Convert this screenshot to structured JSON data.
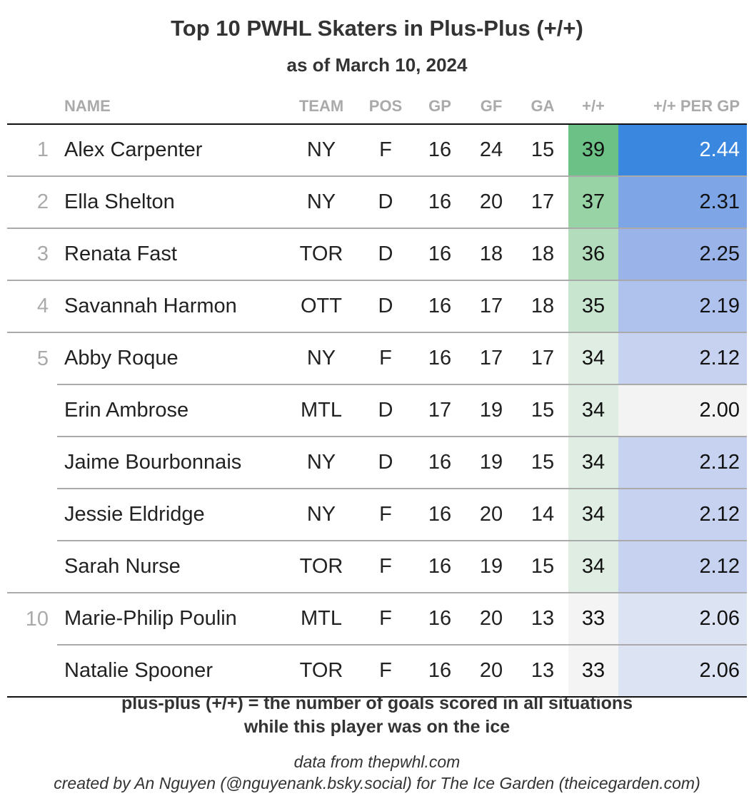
{
  "title": "Top 10 PWHL Skaters in Plus-Plus (+/+)",
  "subtitle": "as of March 10, 2024",
  "footnote_line1": "plus-plus (+/+) = the number of goals scored in all situations",
  "footnote_line2": "while this player was on the ice",
  "source_line1": "data from thepwhl.com",
  "source_line2": "created by An Nguyen (@nguyenank.bsky.social) for The Ice Garden (theicegarden.com)",
  "chart_data": {
    "type": "table",
    "columns": [
      "",
      "NAME",
      "TEAM",
      "POS",
      "GP",
      "GF",
      "GA",
      "+/+",
      "+/+ PER GP"
    ],
    "rows": [
      {
        "rank": "1",
        "name": "Alex Carpenter",
        "team": "NY",
        "pos": "F",
        "gp": 16,
        "gf": 24,
        "ga": 15,
        "pp": 39,
        "ppg": "2.44",
        "pp_color": "#6cc187",
        "ppg_color": "#3a87e0",
        "ppg_text": "#ffffff"
      },
      {
        "rank": "2",
        "name": "Ella Shelton",
        "team": "NY",
        "pos": "D",
        "gp": 16,
        "gf": 20,
        "ga": 17,
        "pp": 37,
        "ppg": "2.31",
        "pp_color": "#98d3a6",
        "ppg_color": "#7ea5e6",
        "ppg_text": "#111111"
      },
      {
        "rank": "3",
        "name": "Renata Fast",
        "team": "TOR",
        "pos": "D",
        "gp": 16,
        "gf": 18,
        "ga": 18,
        "pp": 36,
        "ppg": "2.25",
        "pp_color": "#b3dcbd",
        "ppg_color": "#9ab4ea",
        "ppg_text": "#111111"
      },
      {
        "rank": "4",
        "name": "Savannah Harmon",
        "team": "OTT",
        "pos": "D",
        "gp": 16,
        "gf": 17,
        "ga": 18,
        "pp": 35,
        "ppg": "2.19",
        "pp_color": "#c8e5cf",
        "ppg_color": "#afc1ed",
        "ppg_text": "#111111"
      },
      {
        "rank": "5",
        "name": "Abby Roque",
        "team": "NY",
        "pos": "F",
        "gp": 16,
        "gf": 17,
        "ga": 17,
        "pp": 34,
        "ppg": "2.12",
        "pp_color": "#dfede2",
        "ppg_color": "#c6d2ef",
        "ppg_text": "#111111"
      },
      {
        "rank": "",
        "name": "Erin Ambrose",
        "team": "MTL",
        "pos": "D",
        "gp": 17,
        "gf": 19,
        "ga": 15,
        "pp": 34,
        "ppg": "2.00",
        "pp_color": "#dfede2",
        "ppg_color": "#f3f3f3",
        "ppg_text": "#111111"
      },
      {
        "rank": "",
        "name": "Jaime Bourbonnais",
        "team": "NY",
        "pos": "D",
        "gp": 16,
        "gf": 19,
        "ga": 15,
        "pp": 34,
        "ppg": "2.12",
        "pp_color": "#dfede2",
        "ppg_color": "#c6d2ef",
        "ppg_text": "#111111"
      },
      {
        "rank": "",
        "name": "Jessie Eldridge",
        "team": "NY",
        "pos": "F",
        "gp": 16,
        "gf": 20,
        "ga": 14,
        "pp": 34,
        "ppg": "2.12",
        "pp_color": "#dfede2",
        "ppg_color": "#c6d2ef",
        "ppg_text": "#111111"
      },
      {
        "rank": "",
        "name": "Sarah Nurse",
        "team": "TOR",
        "pos": "F",
        "gp": 16,
        "gf": 19,
        "ga": 15,
        "pp": 34,
        "ppg": "2.12",
        "pp_color": "#dfede2",
        "ppg_color": "#c6d2ef",
        "ppg_text": "#111111"
      },
      {
        "rank": "10",
        "name": "Marie-Philip Poulin",
        "team": "MTL",
        "pos": "F",
        "gp": 16,
        "gf": 20,
        "ga": 13,
        "pp": 33,
        "ppg": "2.06",
        "pp_color": "#f3f4f3",
        "ppg_color": "#dce3f2",
        "ppg_text": "#111111"
      },
      {
        "rank": "",
        "name": "Natalie Spooner",
        "team": "TOR",
        "pos": "F",
        "gp": 16,
        "gf": 20,
        "ga": 13,
        "pp": 33,
        "ppg": "2.06",
        "pp_color": "#f3f4f3",
        "ppg_color": "#dce3f2",
        "ppg_text": "#111111"
      }
    ]
  }
}
